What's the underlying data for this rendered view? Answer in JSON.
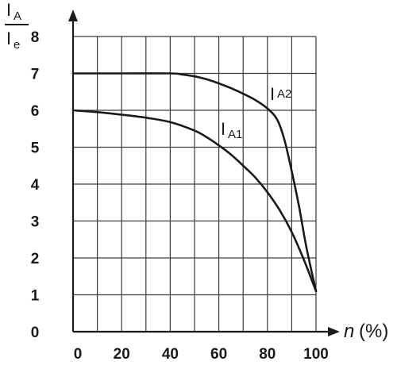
{
  "chart_data": {
    "type": "line",
    "title": "",
    "ylabel_num": "I",
    "ylabel_num_sub": "A",
    "ylabel_den": "I",
    "ylabel_den_sub": "e",
    "xlabel_var": "n",
    "xlabel_unit": "(%)",
    "xlim": [
      0,
      100
    ],
    "ylim": [
      0,
      8
    ],
    "x_ticks": [
      "0",
      "20",
      "40",
      "60",
      "80",
      "100"
    ],
    "y_ticks": [
      "0",
      "1",
      "2",
      "3",
      "4",
      "5",
      "6",
      "7",
      "8"
    ],
    "grid": true,
    "series": [
      {
        "name": "I",
        "name_sub": "A1",
        "x": [
          0,
          10,
          20,
          30,
          40,
          50,
          55,
          60,
          65,
          70,
          75,
          80,
          85,
          90,
          95,
          100
        ],
        "y": [
          6.0,
          5.95,
          5.88,
          5.8,
          5.68,
          5.45,
          5.27,
          5.05,
          4.8,
          4.5,
          4.18,
          3.78,
          3.3,
          2.7,
          1.95,
          1.1
        ]
      },
      {
        "name": "I",
        "name_sub": "A2",
        "x": [
          0,
          20,
          40,
          45,
          50,
          55,
          60,
          65,
          70,
          75,
          80,
          84,
          87,
          90,
          93,
          96,
          100
        ],
        "y": [
          7.0,
          7.0,
          7.0,
          6.97,
          6.92,
          6.84,
          6.73,
          6.6,
          6.45,
          6.28,
          6.05,
          5.75,
          5.2,
          4.35,
          3.4,
          2.3,
          1.1
        ]
      }
    ]
  }
}
